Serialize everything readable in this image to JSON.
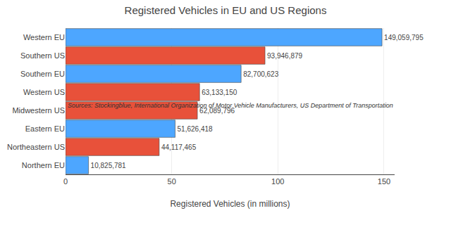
{
  "chart_data": {
    "type": "bar",
    "orientation": "horizontal",
    "title": "Registered Vehicles in EU and US Regions",
    "x_label": "Registered Vehicles (in millions)",
    "annotation": "Sources: Stockingblue, International Organization of Motor Vehicle Manufacturers, US Department of Transportation",
    "categories": [
      "Western EU",
      "Southern US",
      "Southern EU",
      "Western US",
      "Midwestern US",
      "Eastern EU",
      "Northeastern US",
      "Northern EU"
    ],
    "values": [
      149059795,
      93946879,
      82700623,
      63133150,
      62089796,
      51626418,
      44117465,
      10825781
    ],
    "value_labels": [
      "149,059,795",
      "93,946,879",
      "82,700,623",
      "63,133,150",
      "62,089,796",
      "51,626,418",
      "44,117,465",
      "10,825,781"
    ],
    "colors": [
      "#4da6ff",
      "#e8513a",
      "#4da6ff",
      "#e8513a",
      "#e8513a",
      "#4da6ff",
      "#e8513a",
      "#4da6ff"
    ],
    "data_labels": true,
    "xlim": [
      0,
      155000000
    ],
    "xticks": [
      {
        "value": 0,
        "label": "0"
      },
      {
        "value": 50000000,
        "label": "50"
      },
      {
        "value": 100000000,
        "label": "100"
      },
      {
        "value": 150000000,
        "label": "150"
      }
    ],
    "grid": true
  }
}
